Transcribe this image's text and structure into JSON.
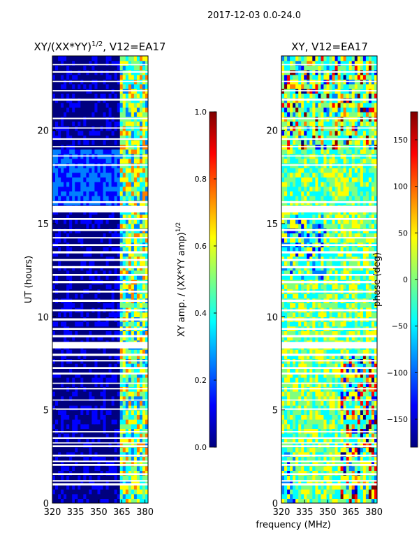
{
  "figure": {
    "suptitle": "2017-12-03 0.0-24.0",
    "xlabel": "frequency (MHz)",
    "ylabel": "UT (hours)"
  },
  "colors": {
    "jet_stops": [
      "#00007f",
      "#0000ff",
      "#007fff",
      "#00ffff",
      "#7fff7f",
      "#ffff00",
      "#ff7f00",
      "#ff0000",
      "#7f0000"
    ]
  },
  "chart_data": [
    {
      "type": "heatmap",
      "title_main": "XY/(XX*YY)",
      "title_sup": "1/2",
      "title_rest": ", V12=EA17",
      "xlim": [
        320,
        382
      ],
      "xticks": [
        320,
        335,
        350,
        365,
        380
      ],
      "ylim": [
        0,
        24
      ],
      "yticks": [
        0,
        5,
        10,
        15,
        20
      ],
      "ylabel": "UT (hours)",
      "colorbar": {
        "label_main": "XY amp. / (XX*YY amp)",
        "label_sup": "1/2",
        "range": [
          0.0,
          1.0
        ],
        "ticks": [
          "0.0",
          "0.2",
          "0.4",
          "0.6",
          "0.8",
          "1.0"
        ],
        "tick_values": [
          0.0,
          0.2,
          0.4,
          0.6,
          0.8,
          1.0
        ]
      },
      "gaps_ut": [
        0.95,
        1.15,
        1.5,
        2.0,
        2.2,
        2.5,
        3.0,
        3.2,
        3.45,
        3.8,
        5.0,
        5.5,
        6.1,
        6.4,
        6.9,
        7.2,
        7.6,
        7.9,
        8.3,
        8.9,
        9.3,
        9.8,
        10.3,
        10.8,
        11.3,
        11.8,
        12.2,
        12.6,
        13.0,
        13.4,
        13.8,
        14.2,
        14.6,
        15.2,
        15.6,
        16.1,
        18.1,
        18.6,
        19.1,
        19.5,
        20.1,
        20.6,
        21.6,
        22.1,
        22.6,
        23.1,
        23.5
      ],
      "gap_widths_ut": [
        0.12,
        0.08,
        0.1,
        0.1,
        0.08,
        0.1,
        0.1,
        0.06,
        0.08,
        0.06,
        0.08,
        0.06,
        0.08,
        0.06,
        0.1,
        0.1,
        0.08,
        0.12,
        0.35,
        0.12,
        0.1,
        0.12,
        0.1,
        0.12,
        0.1,
        0.12,
        0.1,
        0.12,
        0.1,
        0.12,
        0.1,
        0.08,
        0.1,
        0.1,
        0.35,
        0.1,
        0.08,
        0.06,
        0.06,
        0.08,
        0.06,
        0.08,
        0.1,
        0.06,
        0.06,
        0.08,
        0.06
      ]
    },
    {
      "type": "heatmap",
      "title": "XY, V12=EA17",
      "xlim": [
        320,
        382
      ],
      "xticks": [
        320,
        335,
        350,
        365,
        380
      ],
      "ylim": [
        0,
        24
      ],
      "yticks": [
        0,
        5,
        10,
        15,
        20
      ],
      "colorbar": {
        "label": "phase (deg)",
        "range": [
          -180,
          180
        ],
        "ticks": [
          "150",
          "100",
          "50",
          "0",
          "−50",
          "−100",
          "−150"
        ],
        "tick_values": [
          150,
          100,
          50,
          0,
          -50,
          -100,
          -150
        ]
      }
    }
  ]
}
